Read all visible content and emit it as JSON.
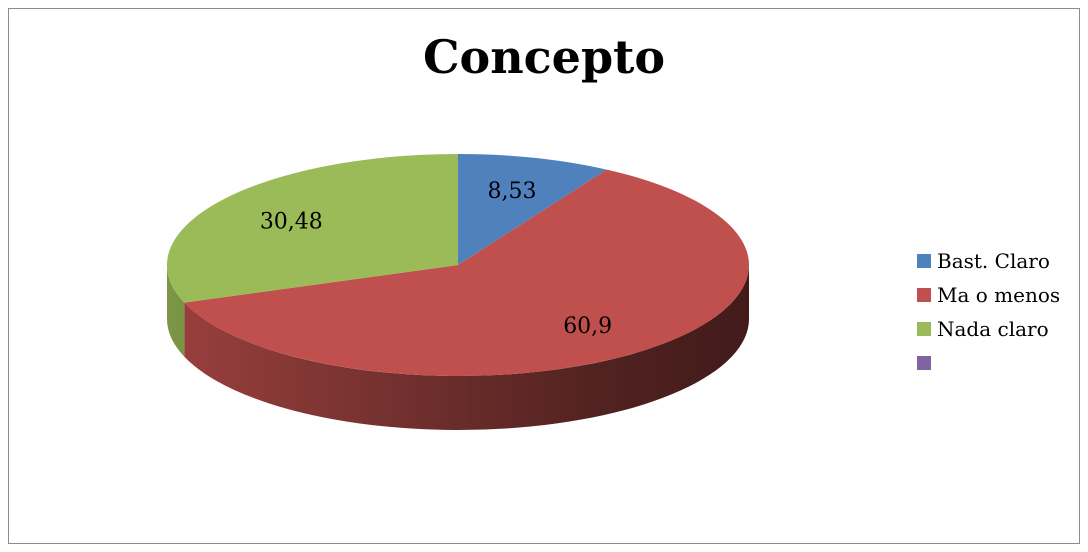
{
  "chart_data": {
    "type": "pie",
    "title": "Concepto",
    "categories": [
      "Bast. Claro",
      "Ma o menos",
      "Nada claro",
      ""
    ],
    "values": [
      8.53,
      60.9,
      30.48,
      0
    ],
    "data_labels": [
      "8,53",
      "60,9",
      "30,48",
      ""
    ],
    "colors": [
      "#4f81bd",
      "#c0504d",
      "#9bbb59",
      "#8064a2"
    ],
    "legend_position": "right",
    "three_d": true
  }
}
